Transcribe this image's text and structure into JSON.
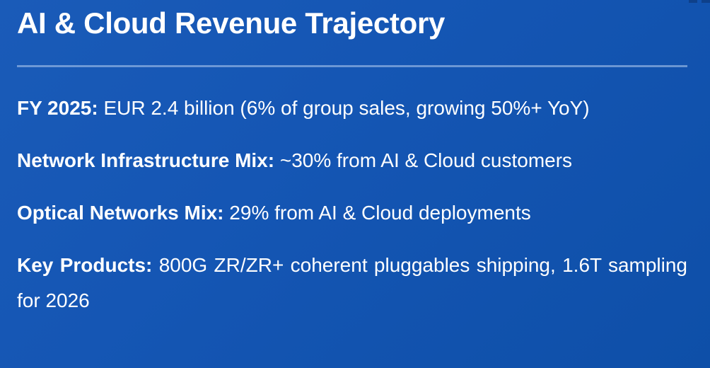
{
  "slide": {
    "title": "AI & Cloud Revenue Trajectory",
    "items": [
      {
        "label": "FY 2025:",
        "text": "EUR 2.4 billion (6% of group sales, growing 50%+ YoY)"
      },
      {
        "label": "Network Infrastructure Mix:",
        "text": "~30% from AI & Cloud customers"
      },
      {
        "label": "Optical Networks Mix:",
        "text": "29% from AI & Cloud deployments"
      },
      {
        "label": "Key Products:",
        "text": "800G ZR/ZR+ coherent pluggables shipping, 1.6T sampling for 2026"
      }
    ]
  },
  "colors": {
    "background": "#1556b4",
    "text": "#ffffff",
    "divider": "#b4cdf0"
  }
}
